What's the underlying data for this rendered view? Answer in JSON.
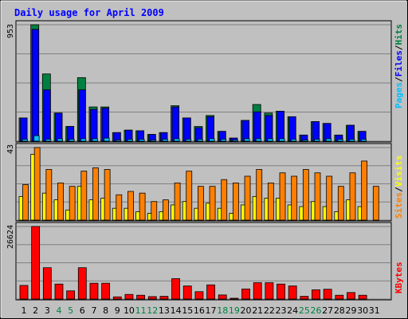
{
  "chart_data": [
    {
      "type": "bar",
      "title": "Daily usage for April 2009",
      "ymax_label": "953",
      "series_labels": [
        "Pages",
        "Files",
        "Hits"
      ],
      "colors": {
        "hits": "#008040",
        "files": "#0000ff",
        "pages": "#00c0ff"
      },
      "x": [
        "1",
        "2",
        "3",
        "4",
        "5",
        "6",
        "7",
        "8",
        "9",
        "10",
        "11",
        "12",
        "13",
        "14",
        "15",
        "16",
        "17",
        "18",
        "19",
        "20",
        "21",
        "22",
        "23",
        "24",
        "25",
        "26",
        "27",
        "28",
        "29",
        "30",
        "31"
      ],
      "series": [
        {
          "name": "Hits",
          "values": [
            190,
            953,
            550,
            230,
            120,
            520,
            280,
            280,
            70,
            90,
            85,
            55,
            70,
            290,
            190,
            120,
            210,
            80,
            25,
            170,
            300,
            230,
            245,
            200,
            50,
            160,
            145,
            50,
            130,
            80,
            0
          ]
        },
        {
          "name": "Files",
          "values": [
            190,
            915,
            420,
            230,
            120,
            420,
            260,
            270,
            70,
            90,
            85,
            55,
            70,
            280,
            190,
            110,
            200,
            80,
            25,
            170,
            240,
            210,
            245,
            200,
            50,
            160,
            145,
            50,
            130,
            80,
            0
          ]
        },
        {
          "name": "Pages",
          "values": [
            15,
            45,
            15,
            20,
            15,
            20,
            20,
            25,
            10,
            15,
            15,
            10,
            15,
            20,
            15,
            15,
            20,
            15,
            10,
            20,
            20,
            20,
            20,
            15,
            10,
            15,
            20,
            15,
            15,
            15,
            0
          ]
        }
      ]
    },
    {
      "type": "bar",
      "ymax_label": "43",
      "series_labels": [
        "Sites",
        "Visits"
      ],
      "colors": {
        "sites": "#ff8000",
        "visits": "#ffff00"
      },
      "x": [
        "1",
        "2",
        "3",
        "4",
        "5",
        "6",
        "7",
        "8",
        "9",
        "10",
        "11",
        "12",
        "13",
        "14",
        "15",
        "16",
        "17",
        "18",
        "19",
        "20",
        "21",
        "22",
        "23",
        "24",
        "25",
        "26",
        "27",
        "28",
        "29",
        "30",
        "31"
      ],
      "series": [
        {
          "name": "Sites",
          "values": [
            21,
            43,
            30,
            22,
            20,
            29,
            31,
            30,
            15,
            17,
            16,
            11,
            12,
            22,
            29,
            20,
            20,
            24,
            22,
            26,
            30,
            22,
            28,
            26,
            30,
            28,
            26,
            20,
            28,
            35,
            20
          ]
        },
        {
          "name": "Visits",
          "values": [
            14,
            39,
            16,
            12,
            6,
            20,
            12,
            13,
            7,
            7,
            5,
            4,
            5,
            9,
            11,
            7,
            10,
            7,
            4,
            9,
            14,
            13,
            13,
            9,
            8,
            11,
            8,
            5,
            12,
            8,
            0
          ]
        }
      ]
    },
    {
      "type": "bar",
      "ymax_label": "26624",
      "series_labels": [
        "KBytes"
      ],
      "colors": {
        "kbytes": "#ff0000"
      },
      "x": [
        "1",
        "2",
        "3",
        "4",
        "5",
        "6",
        "7",
        "8",
        "9",
        "10",
        "11",
        "12",
        "13",
        "14",
        "15",
        "16",
        "17",
        "18",
        "19",
        "20",
        "21",
        "22",
        "23",
        "24",
        "25",
        "26",
        "27",
        "28",
        "29",
        "30",
        "31"
      ],
      "series": [
        {
          "name": "KBytes",
          "values": [
            5000,
            26624,
            11500,
            5500,
            3000,
            11500,
            5800,
            5800,
            800,
            1700,
            1400,
            900,
            1000,
            7500,
            4800,
            2700,
            5200,
            1500,
            300,
            3700,
            6000,
            6000,
            5500,
            4800,
            1000,
            3400,
            3600,
            1400,
            2400,
            1400,
            0
          ]
        }
      ]
    }
  ],
  "x_label_colors": {
    "weekday": "#000000",
    "weekend": "#008040"
  },
  "weekend_days": [
    4,
    5,
    11,
    12,
    18,
    19,
    25,
    26
  ]
}
